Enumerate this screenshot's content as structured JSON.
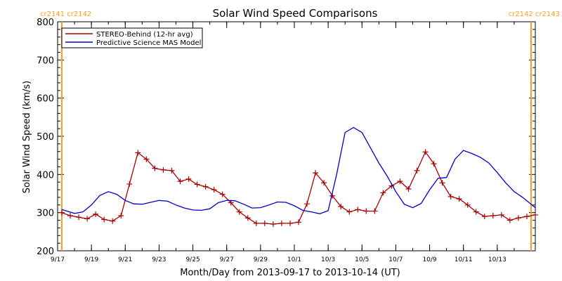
{
  "chart_data": {
    "type": "line",
    "title": "Solar Wind Speed Comparisons",
    "xlabel": "Month/Day from 2013-09-17 to 2013-10-14 (UT)",
    "ylabel": "Solar Wind Speed (km/s)",
    "xlim": [
      "2013-09-17T00:00",
      "2013-10-15T06:00"
    ],
    "ylim": [
      200,
      800
    ],
    "yticks": [
      200,
      300,
      400,
      500,
      600,
      700,
      800
    ],
    "xticks": [
      {
        "date": "2013-09-17",
        "label": "9/17"
      },
      {
        "date": "2013-09-19",
        "label": "9/19"
      },
      {
        "date": "2013-09-21",
        "label": "9/21"
      },
      {
        "date": "2013-09-23",
        "label": "9/23"
      },
      {
        "date": "2013-09-25",
        "label": "9/25"
      },
      {
        "date": "2013-09-27",
        "label": "9/27"
      },
      {
        "date": "2013-09-29",
        "label": "9/29"
      },
      {
        "date": "2013-10-01",
        "label": "10/1"
      },
      {
        "date": "2013-10-03",
        "label": "10/3"
      },
      {
        "date": "2013-10-05",
        "label": "10/5"
      },
      {
        "date": "2013-10-07",
        "label": "10/7"
      },
      {
        "date": "2013-10-09",
        "label": "10/9"
      },
      {
        "date": "2013-10-11",
        "label": "10/11"
      },
      {
        "date": "2013-10-13",
        "label": "10/13"
      }
    ],
    "legend_position": "top-left",
    "grid": false,
    "rotation_markers": [
      {
        "date": "2013-09-17T06:00",
        "label": "cr2141 cr2142",
        "color": "#ff9d1a"
      },
      {
        "date": "2013-10-15T00:00",
        "label": "cr2142 cr2143",
        "color": "#ff9d1a"
      }
    ],
    "series": [
      {
        "name": "STEREO-Behind (12-hr avg)",
        "color": "#aa0000",
        "marker": "plus",
        "points": [
          [
            "2013-09-17T06:00",
            300
          ],
          [
            "2013-09-17T18:00",
            292
          ],
          [
            "2013-09-18T06:00",
            288
          ],
          [
            "2013-09-18T18:00",
            284
          ],
          [
            "2013-09-19T06:00",
            296
          ],
          [
            "2013-09-19T18:00",
            282
          ],
          [
            "2013-09-20T06:00",
            278
          ],
          [
            "2013-09-20T18:00",
            292
          ],
          [
            "2013-09-21T06:00",
            375
          ],
          [
            "2013-09-21T18:00",
            457
          ],
          [
            "2013-09-22T06:00",
            440
          ],
          [
            "2013-09-22T18:00",
            416
          ],
          [
            "2013-09-23T06:00",
            412
          ],
          [
            "2013-09-23T18:00",
            410
          ],
          [
            "2013-09-24T06:00",
            382
          ],
          [
            "2013-09-24T18:00",
            388
          ],
          [
            "2013-09-25T06:00",
            374
          ],
          [
            "2013-09-25T18:00",
            368
          ],
          [
            "2013-09-26T06:00",
            360
          ],
          [
            "2013-09-26T18:00",
            348
          ],
          [
            "2013-09-27T06:00",
            326
          ],
          [
            "2013-09-27T18:00",
            302
          ],
          [
            "2013-09-28T06:00",
            286
          ],
          [
            "2013-09-28T18:00",
            272
          ],
          [
            "2013-09-29T06:00",
            272
          ],
          [
            "2013-09-29T18:00",
            270
          ],
          [
            "2013-09-30T06:00",
            272
          ],
          [
            "2013-09-30T18:00",
            272
          ],
          [
            "2013-10-01T06:00",
            275
          ],
          [
            "2013-10-01T18:00",
            323
          ],
          [
            "2013-10-02T06:00",
            404
          ],
          [
            "2013-10-02T18:00",
            378
          ],
          [
            "2013-10-03T06:00",
            344
          ],
          [
            "2013-10-03T18:00",
            316
          ],
          [
            "2013-10-04T06:00",
            302
          ],
          [
            "2013-10-04T18:00",
            308
          ],
          [
            "2013-10-05T06:00",
            304
          ],
          [
            "2013-10-05T18:00",
            304
          ],
          [
            "2013-10-06T06:00",
            352
          ],
          [
            "2013-10-06T18:00",
            370
          ],
          [
            "2013-10-07T06:00",
            382
          ],
          [
            "2013-10-07T18:00",
            362
          ],
          [
            "2013-10-08T06:00",
            410
          ],
          [
            "2013-10-08T18:00",
            459
          ],
          [
            "2013-10-09T06:00",
            428
          ],
          [
            "2013-10-09T18:00",
            378
          ],
          [
            "2013-10-10T06:00",
            342
          ],
          [
            "2013-10-10T18:00",
            336
          ],
          [
            "2013-10-11T06:00",
            320
          ],
          [
            "2013-10-11T18:00",
            302
          ],
          [
            "2013-10-12T06:00",
            290
          ],
          [
            "2013-10-12T18:00",
            292
          ],
          [
            "2013-10-13T06:00",
            294
          ],
          [
            "2013-10-13T18:00",
            280
          ],
          [
            "2013-10-14T06:00",
            286
          ],
          [
            "2013-10-14T18:00",
            290
          ],
          [
            "2013-10-15T06:00",
            294
          ]
        ]
      },
      {
        "name": "Predictive Science MAS Model",
        "color": "#0000cc",
        "marker": "none",
        "points": [
          [
            "2013-09-17T06:00",
            308
          ],
          [
            "2013-09-18T00:00",
            298
          ],
          [
            "2013-09-18T12:00",
            302
          ],
          [
            "2013-09-19T00:00",
            320
          ],
          [
            "2013-09-19T12:00",
            345
          ],
          [
            "2013-09-20T00:00",
            355
          ],
          [
            "2013-09-20T12:00",
            348
          ],
          [
            "2013-09-21T00:00",
            332
          ],
          [
            "2013-09-21T12:00",
            323
          ],
          [
            "2013-09-22T00:00",
            322
          ],
          [
            "2013-09-22T12:00",
            327
          ],
          [
            "2013-09-23T00:00",
            332
          ],
          [
            "2013-09-23T12:00",
            330
          ],
          [
            "2013-09-24T00:00",
            320
          ],
          [
            "2013-09-24T12:00",
            312
          ],
          [
            "2013-09-25T00:00",
            307
          ],
          [
            "2013-09-25T12:00",
            306
          ],
          [
            "2013-09-26T00:00",
            310
          ],
          [
            "2013-09-26T12:00",
            326
          ],
          [
            "2013-09-27T00:00",
            332
          ],
          [
            "2013-09-27T12:00",
            331
          ],
          [
            "2013-09-28T00:00",
            322
          ],
          [
            "2013-09-28T12:00",
            312
          ],
          [
            "2013-09-29T00:00",
            313
          ],
          [
            "2013-09-29T12:00",
            320
          ],
          [
            "2013-09-30T00:00",
            328
          ],
          [
            "2013-09-30T12:00",
            327
          ],
          [
            "2013-10-01T00:00",
            318
          ],
          [
            "2013-10-01T12:00",
            306
          ],
          [
            "2013-10-02T00:00",
            302
          ],
          [
            "2013-10-02T12:00",
            297
          ],
          [
            "2013-10-03T00:00",
            305
          ],
          [
            "2013-10-03T12:00",
            400
          ],
          [
            "2013-10-04T00:00",
            510
          ],
          [
            "2013-10-04T12:00",
            523
          ],
          [
            "2013-10-05T00:00",
            510
          ],
          [
            "2013-10-05T12:00",
            470
          ],
          [
            "2013-10-06T00:00",
            430
          ],
          [
            "2013-10-06T12:00",
            395
          ],
          [
            "2013-10-07T00:00",
            355
          ],
          [
            "2013-10-07T12:00",
            322
          ],
          [
            "2013-10-08T00:00",
            313
          ],
          [
            "2013-10-08T12:00",
            324
          ],
          [
            "2013-10-09T00:00",
            360
          ],
          [
            "2013-10-09T12:00",
            390
          ],
          [
            "2013-10-10T00:00",
            392
          ],
          [
            "2013-10-10T12:00",
            440
          ],
          [
            "2013-10-11T00:00",
            463
          ],
          [
            "2013-10-11T12:00",
            455
          ],
          [
            "2013-10-12T00:00",
            445
          ],
          [
            "2013-10-12T12:00",
            430
          ],
          [
            "2013-10-13T00:00",
            405
          ],
          [
            "2013-10-13T12:00",
            378
          ],
          [
            "2013-10-14T00:00",
            355
          ],
          [
            "2013-10-14T12:00",
            340
          ],
          [
            "2013-10-15T06:00",
            313
          ]
        ]
      }
    ]
  }
}
